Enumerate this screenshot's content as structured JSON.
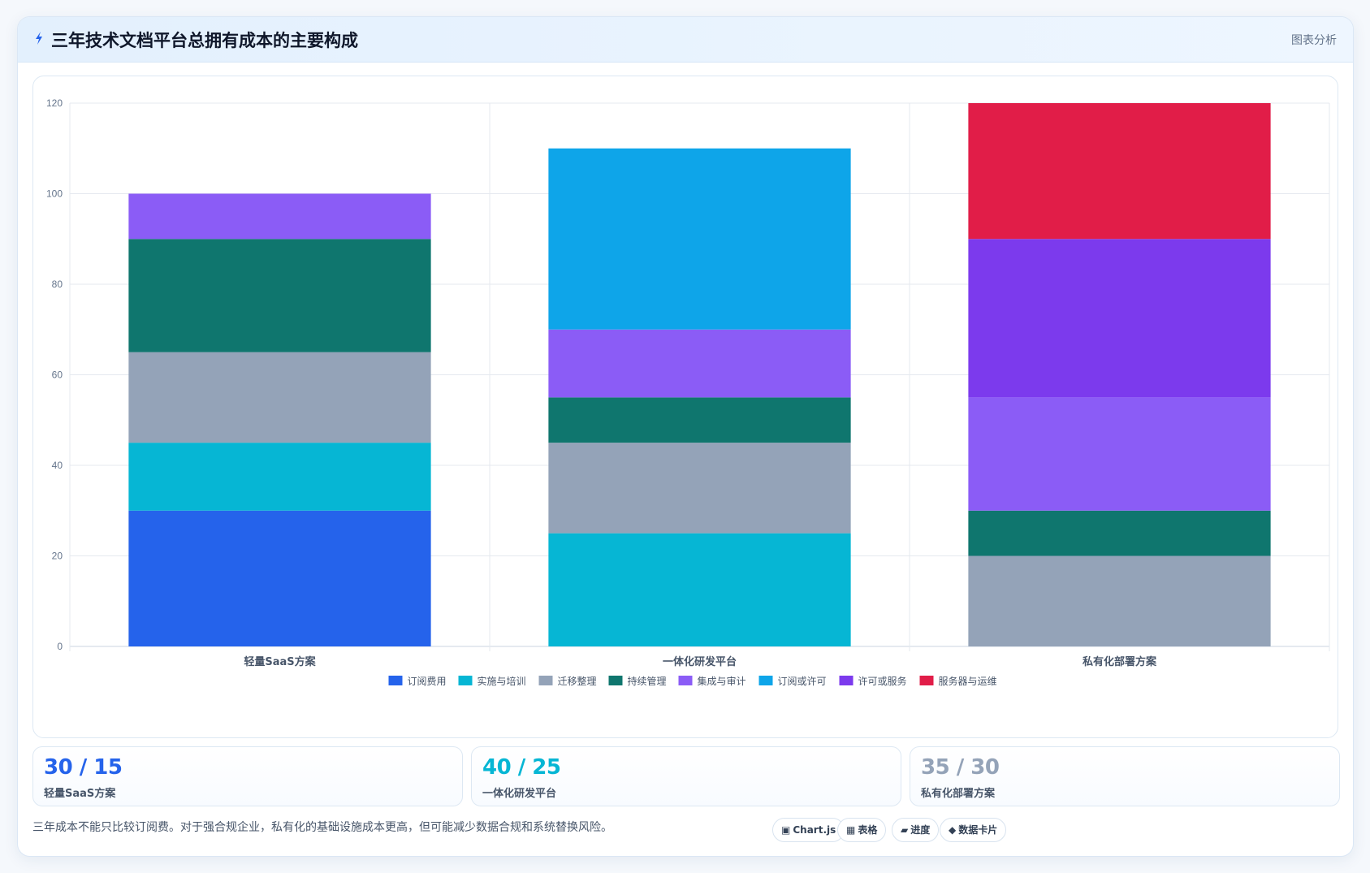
{
  "header": {
    "title": "三年技术文档平台总拥有成本的主要构成",
    "tag": "图表分析"
  },
  "chart_data": {
    "type": "bar",
    "stacked": true,
    "categories": [
      "轻量SaaS方案",
      "一体化研发平台",
      "私有化部署方案"
    ],
    "ylim": [
      0,
      120
    ],
    "yticks": [
      0,
      20,
      40,
      60,
      80,
      100,
      120
    ],
    "grid": true,
    "legend_position": "bottom",
    "series": [
      {
        "name": "订阅费用",
        "color": "#2563eb",
        "values": [
          30,
          0,
          0
        ]
      },
      {
        "name": "实施与培训",
        "color": "#06b6d4",
        "values": [
          15,
          25,
          0
        ]
      },
      {
        "name": "迁移整理",
        "color": "#94a3b8",
        "values": [
          20,
          20,
          20
        ]
      },
      {
        "name": "持续管理",
        "color": "#0f766e",
        "values": [
          25,
          10,
          10
        ]
      },
      {
        "name": "集成与审计",
        "color": "#8b5cf6",
        "values": [
          10,
          15,
          25
        ]
      },
      {
        "name": "订阅或许可",
        "color": "#0ea5e9",
        "values": [
          0,
          40,
          0
        ]
      },
      {
        "name": "许可或服务",
        "color": "#7c3aed",
        "values": [
          0,
          0,
          35
        ]
      },
      {
        "name": "服务器与运维",
        "color": "#e11d48",
        "values": [
          0,
          0,
          30
        ]
      }
    ]
  },
  "metrics": [
    {
      "value": "30 / 15",
      "label": "轻量SaaS方案",
      "color": "#2563eb"
    },
    {
      "value": "40 / 25",
      "label": "一体化研发平台",
      "color": "#06b6d4"
    },
    {
      "value": "35 / 30",
      "label": "私有化部署方案",
      "color": "#94a3b8"
    }
  ],
  "note": "三年成本不能只比较订阅费。对于强合规企业，私有化的基础设施成本更高，但可能减少数据合规和系统替换风险。",
  "pills": [
    {
      "icon": "chart-icon",
      "glyph": "▣",
      "label": "Chart.js"
    },
    {
      "icon": "table-icon",
      "glyph": "▦",
      "label": "表格"
    },
    {
      "icon": "progress-icon",
      "glyph": "▰",
      "label": "进度"
    },
    {
      "icon": "card-icon",
      "glyph": "◆",
      "label": "数据卡片"
    }
  ]
}
